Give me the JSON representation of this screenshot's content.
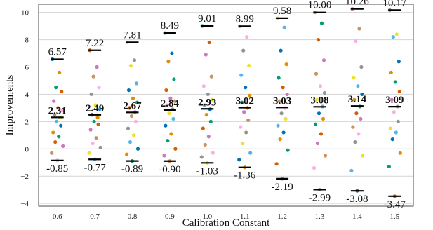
{
  "chart_data": {
    "type": "scatter",
    "title": "",
    "xlabel": "Calibration Constant",
    "ylabel": "Improvements",
    "categories": [
      "0.6",
      "0.7",
      "0.8",
      "0.9",
      "1.0",
      "1.1",
      "1.2",
      "1.3",
      "1.4",
      "1.5"
    ],
    "ylim": [
      -4.2,
      10.6
    ],
    "yticks": [
      "−4",
      "−2",
      "0",
      "2",
      "4",
      "6",
      "8",
      "10"
    ],
    "grid": "horizontal",
    "max_values": [
      6.57,
      7.22,
      7.81,
      8.49,
      9.01,
      8.99,
      9.58,
      10.0,
      10.26,
      10.17
    ],
    "max_labels": [
      "6.57",
      "7.22",
      "7.81",
      "8.49",
      "9.01",
      "8.99",
      "9.58",
      "10.00",
      "10.26",
      "10.17"
    ],
    "mean_values": [
      2.31,
      2.49,
      2.67,
      2.84,
      2.93,
      3.02,
      3.03,
      3.08,
      3.14,
      3.09
    ],
    "mean_labels": [
      "2.31",
      "2.49",
      "2.67",
      "2.84",
      "2.93",
      "3.02",
      "3.03",
      "3.08",
      "3.14",
      "3.09"
    ],
    "min_values": [
      -0.85,
      -0.77,
      -0.89,
      -0.9,
      -1.03,
      -1.36,
      -2.19,
      -2.99,
      -3.08,
      -3.47
    ],
    "min_labels": [
      "-0.85",
      "-0.77",
      "-0.89",
      "-0.90",
      "-1.03",
      "-1.36",
      "-2.19",
      "-2.99",
      "-3.08",
      "-3.47"
    ],
    "point_colors": [
      "#0173b2",
      "#de8f05",
      "#029e73",
      "#d55e00",
      "#cc78bc",
      "#ca9161",
      "#fbafe4",
      "#949494",
      "#ece133",
      "#56b4e9"
    ],
    "points": [
      [
        6.57,
        5.6,
        4.5,
        4.2,
        3.5,
        3.0,
        2.8,
        2.5,
        2.3,
        2.0,
        1.7,
        1.2,
        0.9,
        0.5,
        0.2,
        -0.3,
        -0.85
      ],
      [
        7.22,
        6.0,
        5.3,
        4.5,
        4.0,
        3.2,
        2.9,
        2.5,
        2.3,
        2.0,
        1.8,
        1.4,
        0.8,
        0.4,
        0.1,
        -0.3,
        -0.77
      ],
      [
        7.81,
        6.5,
        6.1,
        4.8,
        4.3,
        3.7,
        3.4,
        3.0,
        2.7,
        2.4,
        2.0,
        1.5,
        1.0,
        0.5,
        0.0,
        -0.4,
        -0.89
      ],
      [
        8.49,
        7.0,
        6.4,
        5.1,
        4.3,
        3.7,
        3.5,
        3.2,
        2.9,
        2.6,
        2.2,
        1.7,
        1.1,
        0.6,
        0.0,
        -0.5,
        -0.9
      ],
      [
        9.01,
        7.8,
        6.9,
        5.3,
        4.6,
        4.0,
        3.6,
        3.2,
        2.9,
        2.5,
        2.0,
        1.5,
        0.9,
        0.3,
        -0.3,
        -0.6,
        -1.03
      ],
      [
        8.99,
        8.2,
        7.2,
        6.1,
        5.4,
        4.5,
        3.9,
        3.4,
        3.0,
        2.7,
        2.1,
        1.6,
        1.2,
        0.4,
        -0.3,
        -0.8,
        -1.36
      ],
      [
        9.58,
        8.9,
        7.2,
        6.2,
        5.2,
        4.5,
        4.0,
        3.5,
        3.0,
        2.6,
        2.2,
        1.7,
        1.2,
        0.7,
        -0.1,
        -1.1,
        -2.19
      ],
      [
        10.0,
        9.2,
        8.0,
        6.5,
        5.5,
        4.6,
        4.1,
        3.6,
        3.1,
        2.6,
        2.2,
        1.8,
        1.1,
        0.4,
        -0.5,
        -1.4,
        -2.99
      ],
      [
        10.26,
        8.8,
        7.9,
        6.0,
        5.2,
        4.6,
        4.0,
        3.6,
        3.1,
        2.6,
        2.2,
        1.6,
        1.1,
        0.5,
        -0.5,
        -1.6,
        -3.08
      ],
      [
        10.17,
        8.4,
        8.2,
        6.4,
        5.6,
        4.9,
        4.2,
        3.6,
        3.1,
        2.7,
        2.0,
        1.5,
        1.2,
        0.7,
        -0.3,
        -1.3,
        -3.47
      ]
    ]
  }
}
